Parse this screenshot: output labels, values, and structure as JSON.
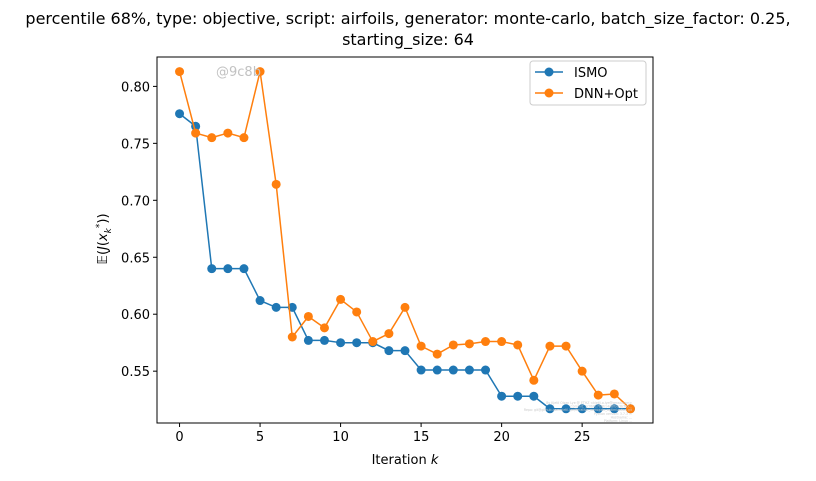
{
  "title_line1": "percentile 68%, type: objective, script: airfoils, generator: monte-carlo, batch_size_factor: 0.25,",
  "title_line2": "starting_size: 64",
  "watermark": "@9c8b",
  "fine_print": [
    "By Kjetil Olsen Lye @ ETHZ <kjetil.o.lye@gmail.com>",
    "Commit: 1c0b017b6b14a8fb0c8cf65...",
    "Repo: git@github.com:kjetil-lye/iterative_surrogate_optimization.git",
    "Python version: 3.7.3 ...",
    "Hostname: ...",
    "Platform: Linux ..."
  ],
  "chart_data": {
    "type": "line",
    "title": "percentile 68%, type: objective, script: airfoils, generator: monte-carlo, batch_size_factor: 0.25, starting_size: 64",
    "xlabel": "Iteration k",
    "ylabel": "E(J(x_k^*))",
    "xlim": [
      -1.4,
      29.4
    ],
    "ylim": [
      0.5045,
      0.8258
    ],
    "xticks": [
      0,
      5,
      10,
      15,
      20,
      25
    ],
    "yticks": [
      0.55,
      0.6,
      0.65,
      0.7,
      0.75,
      0.8
    ],
    "ytick_labels": [
      "0.55",
      "0.60",
      "0.65",
      "0.70",
      "0.75",
      "0.80"
    ],
    "grid": false,
    "legend_position": "top-right",
    "x": [
      0,
      1,
      2,
      3,
      4,
      5,
      6,
      7,
      8,
      9,
      10,
      11,
      12,
      13,
      14,
      15,
      16,
      17,
      18,
      19,
      20,
      21,
      22,
      23,
      24,
      25,
      26,
      27,
      28
    ],
    "series": [
      {
        "name": "ISMO",
        "color": "#1f77b4",
        "values": [
          0.776,
          0.765,
          0.64,
          0.64,
          0.64,
          0.612,
          0.606,
          0.606,
          0.577,
          0.577,
          0.575,
          0.575,
          0.575,
          0.568,
          0.568,
          0.551,
          0.551,
          0.551,
          0.551,
          0.551,
          0.528,
          0.528,
          0.528,
          0.517,
          0.517,
          0.517,
          0.517,
          0.517,
          0.517
        ]
      },
      {
        "name": "DNN+Opt",
        "color": "#ff7f0e",
        "values": [
          0.813,
          0.759,
          0.755,
          0.759,
          0.755,
          0.813,
          0.714,
          0.58,
          0.598,
          0.588,
          0.613,
          0.602,
          0.576,
          0.583,
          0.606,
          0.572,
          0.565,
          0.573,
          0.574,
          0.576,
          0.576,
          0.573,
          0.542,
          0.572,
          0.572,
          0.55,
          0.529,
          0.53,
          0.517
        ]
      }
    ]
  }
}
